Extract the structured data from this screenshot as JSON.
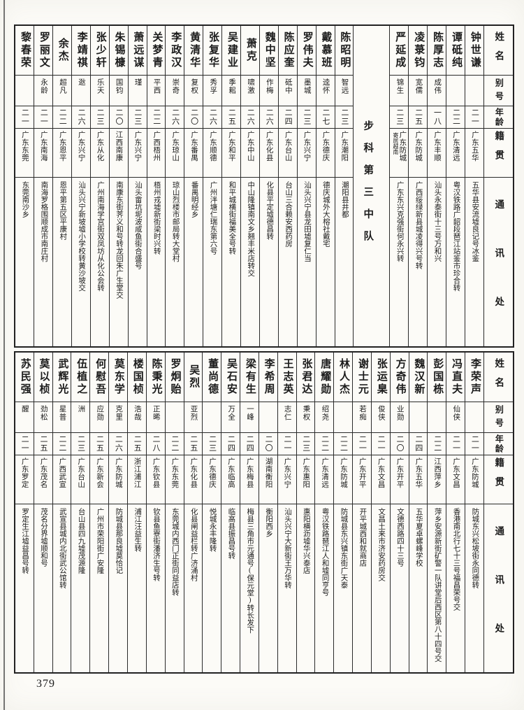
{
  "page": {
    "number": "379"
  },
  "column_headers": {
    "name": "姓名",
    "alias": "别号",
    "age": "年龄",
    "origin": "籍贯",
    "address": "通讯处"
  },
  "tables": [
    {
      "entries": [
        {
          "name": "钟世谦",
          "alias": "",
          "age": "二一",
          "origin": "广东五华",
          "address": "五华县安流墟良记号冰鉴"
        },
        {
          "name": "谭砥纯",
          "alias": "",
          "age": "二二",
          "origin": "广东清远",
          "address": "粤汉铁路广韶段琶江站鉴市珍合转"
        },
        {
          "name": "陈厚志",
          "alias": "成伟",
          "age": "一八",
          "origin": "广东丰顺",
          "address": "汕头永泰街十三号万和兴"
        },
        {
          "name": "凌菉钧",
          "alias": "宽儒",
          "age": "二五",
          "origin": "广东防城",
          "address": "广西绥绿新县城凌得兴号转"
        },
        {
          "name": "严延成",
          "alias": "锦生",
          "age": "二三",
          "origin": "广东防城",
          "origin_note": "寄居越南",
          "address": "广东东兴克强街何永兴转"
        },
        {
          "divider": "步科第三中队"
        },
        {
          "name": "陈昭明",
          "alias": "智远",
          "age": "二三",
          "origin": "广东潮阳",
          "address": "潮阳县井都"
        },
        {
          "name": "戴慕班",
          "alias": "逵怀",
          "age": "二七",
          "origin": "广东德庆",
          "address": "德庆城外大榕社戴宅"
        },
        {
          "name": "罗伟夫",
          "alias": "墨城",
          "age": "二三",
          "origin": "广东兴宁",
          "address": "汕头兴宁县龙田墟复仁当"
        },
        {
          "name": "陈应奎",
          "alias": "砥中",
          "age": "二四",
          "origin": "广东台山",
          "address": "台山三合赖安西药房"
        },
        {
          "name": "魏中坚",
          "alias": "作梅",
          "age": "二六",
          "origin": "广东化县",
          "address": "化县平定墟德昌转"
        },
        {
          "name": "萧克",
          "alias": "啸激",
          "age": "二六",
          "origin": "广东中山",
          "address": "中山隆镇南文乡翘丰米店转交"
        },
        {
          "name": "吴建业",
          "alias": "季耜",
          "age": "二五",
          "origin": "广东和平",
          "address": "和平城横街福美全号转"
        },
        {
          "name": "张复华",
          "alias": "秀孚",
          "age": "二六",
          "origin": "广东顺德",
          "address": "广州泮塘仁瑞东第六号"
        },
        {
          "name": "黄清华",
          "alias": "复权",
          "age": "二〇",
          "origin": "广东番禺",
          "address": "番禺明经乡"
        },
        {
          "name": "李政汉",
          "alias": "崇奇",
          "age": "二六",
          "origin": "广东琼山",
          "address": "琼山烈楼市邮局转大堂村"
        },
        {
          "name": "关梦青",
          "alias": "平西",
          "age": "二二",
          "origin": "广西梧州",
          "address": "梧州戎墟新街梁时兴转"
        },
        {
          "name": "萧远谋",
          "alias": "瑾",
          "age": "二三",
          "origin": "广东兴宁",
          "address": "汕头畲坑坭波咸鱼街合盛号"
        },
        {
          "name": "朱锡槺",
          "alias": "国钧",
          "age": "二〇",
          "origin": "江西南康",
          "address": "南康东街荠义和号转龙回朱广生堂交"
        },
        {
          "name": "张少轩",
          "alias": "乐天",
          "age": "二三",
          "origin": "广东从化",
          "address": "广州南海学宫街双凤坊从化公会转"
        },
        {
          "name": "李靖祺",
          "alias": "逖",
          "age": "二六",
          "origin": "广东兴宁",
          "address": "汕头兴宁新坡墟小学校转黄沙坡交"
        },
        {
          "name": "余杰",
          "alias": "超凡",
          "age": "二二",
          "origin": "广东恩平",
          "address": "恩平第五区平康村"
        },
        {
          "name": "罗丽文",
          "alias": "永龄",
          "age": "二一",
          "origin": "广东南海",
          "address": "南海罗格围顺成市南庄村"
        },
        {
          "name": "黎春荣",
          "alias": "",
          "age": "二一",
          "origin": "广东东莞",
          "address": "东莞南沙乡"
        }
      ]
    },
    {
      "entries": [
        {
          "name": "李荣声",
          "alias": "",
          "age": "二一",
          "origin": "广东防城",
          "address": "防城东兴松坡街永同德转"
        },
        {
          "name": "冯直夫",
          "alias": "仙侠",
          "age": "二一",
          "origin": "广东文昌",
          "address": "香港南北行七十三号福昌荣号交"
        },
        {
          "name": "彭国栋",
          "alias": "",
          "age": "二二",
          "origin": "江西萍乡",
          "address": "萍乡安源新街矿警一队讲堂后西区第八十四号交"
        },
        {
          "name": "魏汉新",
          "alias": "",
          "age": "二四",
          "origin": "广东五华",
          "address": "五华夏卓螺峰学校"
        },
        {
          "name": "方奇伟",
          "alias": "业勋",
          "age": "二〇",
          "origin": "广东开平",
          "address": "文德西路四十三号"
        },
        {
          "name": "张运臬",
          "alias": "俊侠",
          "age": "二一",
          "origin": "广东文昌",
          "address": "文昌土来市济安药房交"
        },
        {
          "name": "谢士元",
          "alias": "若痴",
          "age": "二一",
          "origin": "广东开平",
          "address": "开平城西和就商店"
        },
        {
          "name": "林人杰",
          "alias": "",
          "age": "二二",
          "origin": "广东防城",
          "address": "防城县东兴镇东街广天泰"
        },
        {
          "name": "唐耀勋",
          "alias": "绍尧",
          "age": "二二",
          "origin": "广东清远",
          "address": "粤汉铁路琶江人和墟同亨号"
        },
        {
          "name": "张君达",
          "alias": "秉权",
          "age": "二三",
          "origin": "广东惠阳",
          "address": "惠阳横沥墟华兴泰店"
        },
        {
          "name": "王志英",
          "alias": "志仁",
          "age": "二一",
          "origin": "广东兴宁",
          "address": "汕头兴宁大新街王万华转"
        },
        {
          "name": "李希周",
          "alias": "",
          "age": "二〇",
          "origin": "湖南衡阳",
          "address": "衡阳西乡"
        },
        {
          "name": "梁有生",
          "alias": "一峰",
          "age": "二四",
          "origin": "广东梅县",
          "address": "梅县三角市元通号(保元堂)转长发下"
        },
        {
          "name": "吴石安",
          "alias": "万全",
          "age": "二四",
          "origin": "广东临高",
          "address": "临高县振昌号转"
        },
        {
          "name": "董尚德",
          "alias": "",
          "age": "二三",
          "origin": "广东德庆",
          "address": "悦城永丰隆转"
        },
        {
          "name": "吴烈",
          "alias": "亚烈",
          "age": "二五",
          "origin": "广东化县",
          "address": "化县闸益栏转广济涌村"
        },
        {
          "name": "罗炯贻",
          "alias": "",
          "age": "二二",
          "origin": "广东东莞",
          "address": "东莞城内西门正街同益店转"
        },
        {
          "name": "陈秉光",
          "alias": "正晞",
          "age": "二八",
          "origin": "广东钦县",
          "address": "钦县鱼寮街潘济生号转"
        },
        {
          "name": "楼国桢",
          "alias": "浩哉",
          "age": "二五",
          "origin": "浙江浦江",
          "address": "浦江汪益生转"
        },
        {
          "name": "莫东学",
          "alias": "克里",
          "age": "二六",
          "origin": "广东防城",
          "address": "防城县那良墟莫恰记"
        },
        {
          "name": "何慰吾",
          "alias": "应勋",
          "age": "二五",
          "origin": "广东新会",
          "address": "广州市荣阳街广安隆"
        },
        {
          "name": "伍植之",
          "alias": "洲",
          "age": "二三",
          "origin": "广东台山",
          "address": "台山县四九墟茂源隆"
        },
        {
          "name": "武辉光",
          "alias": "星普",
          "age": "二二",
          "origin": "广西武宣",
          "address": "武宣县城内北街武公馆转"
        },
        {
          "name": "莫以桢",
          "alias": "劲松",
          "age": "二五",
          "origin": "广东茂名",
          "address": "茂名分界墟顺和号"
        },
        {
          "name": "苏民强",
          "alias": "醒",
          "age": "二一",
          "origin": "广东罗定",
          "address": "罗定生江墟益昌号转"
        }
      ]
    }
  ]
}
